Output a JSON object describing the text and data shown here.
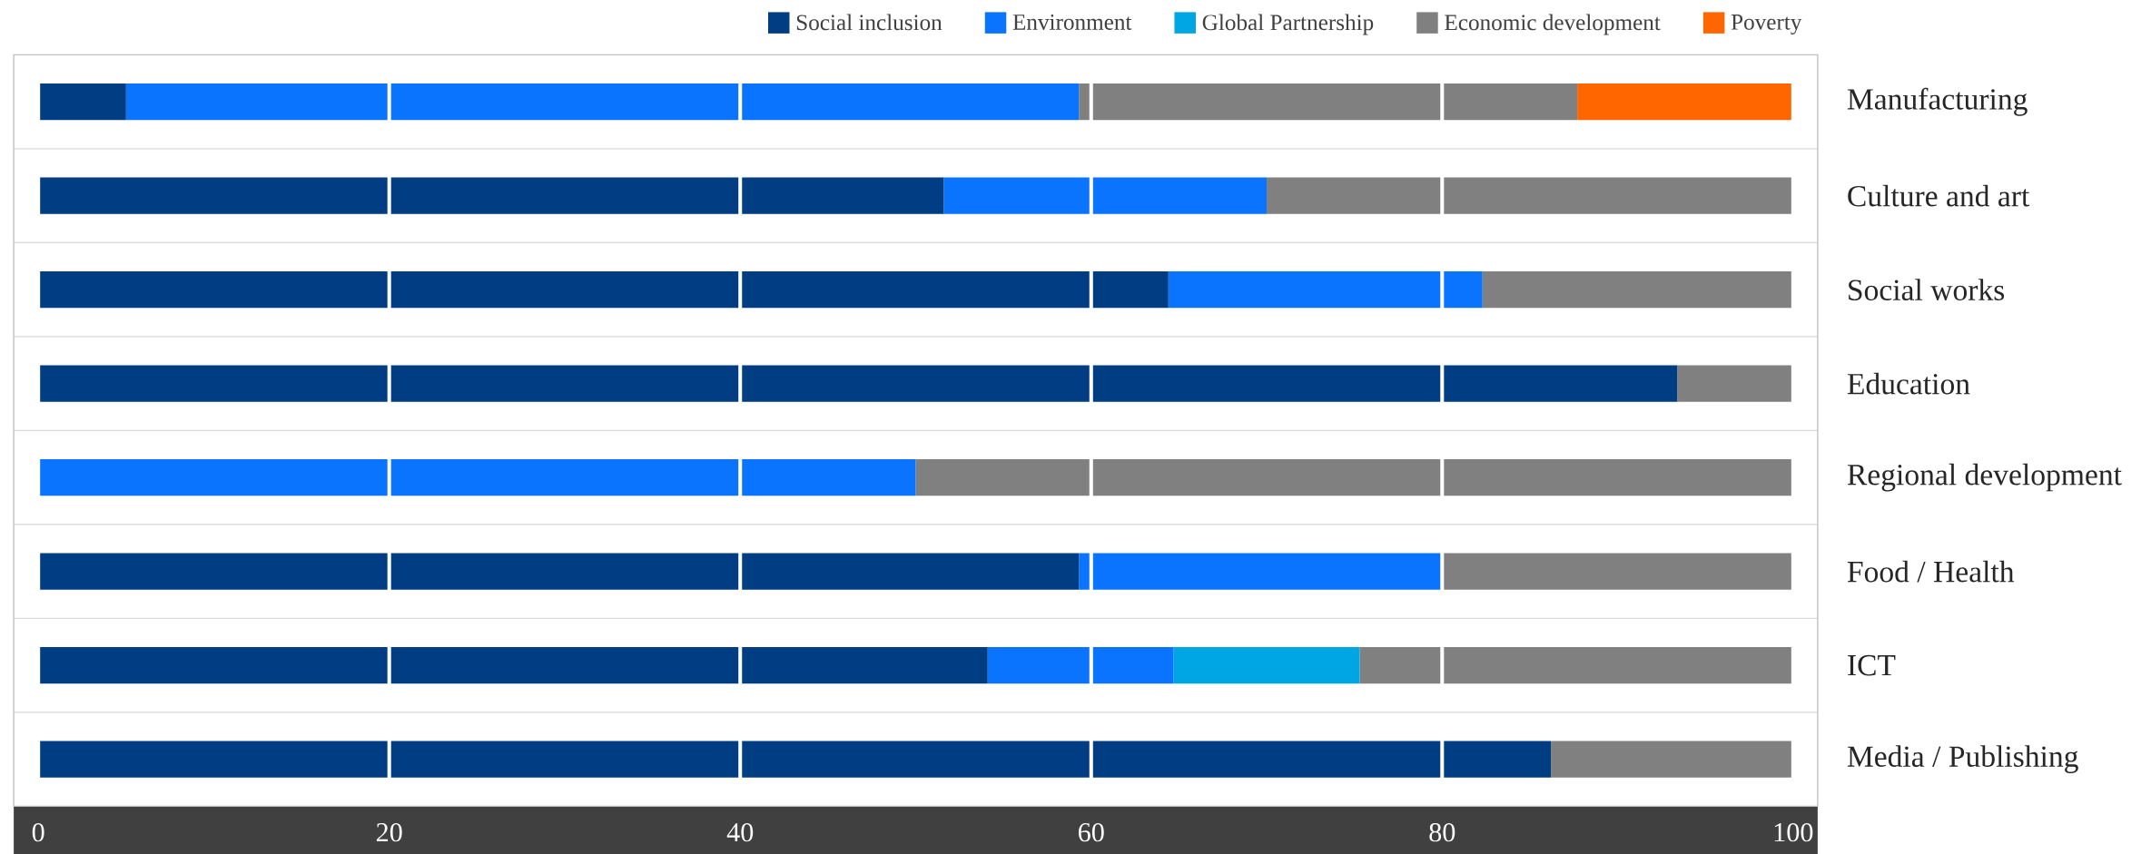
{
  "chart_data": {
    "type": "bar",
    "orientation": "horizontal",
    "stacked": true,
    "categories": [
      "Manufacturing",
      "Culture and art",
      "Social works",
      "Education",
      "Regional development",
      "Food / Health",
      "ICT",
      "Media / Publishing"
    ],
    "series": [
      {
        "name": "Social inclusion",
        "color": "#003d82",
        "values": [
          5,
          51.6,
          64.4,
          93.4,
          0,
          59.3,
          54.1,
          86.2
        ]
      },
      {
        "name": "Environment",
        "color": "#0a74ff",
        "values": [
          54.3,
          18.4,
          17.9,
          0,
          50,
          20.7,
          10.6,
          0
        ]
      },
      {
        "name": "Global Partnership",
        "color": "#00a6e3",
        "values": [
          0,
          0,
          0,
          0,
          0,
          0,
          10.6,
          0
        ]
      },
      {
        "name": "Economic development",
        "color": "#808080",
        "values": [
          28.4,
          30,
          17.7,
          6.6,
          50,
          20,
          24.7,
          13.8
        ]
      },
      {
        "name": "Poverty",
        "color": "#ff6600",
        "values": [
          12.3,
          0,
          0,
          0,
          0,
          0,
          0,
          0
        ]
      }
    ],
    "xlim": [
      0,
      100
    ],
    "xticks": [
      0,
      20,
      40,
      60,
      80,
      100
    ],
    "grid": "x",
    "legend": "top right"
  }
}
